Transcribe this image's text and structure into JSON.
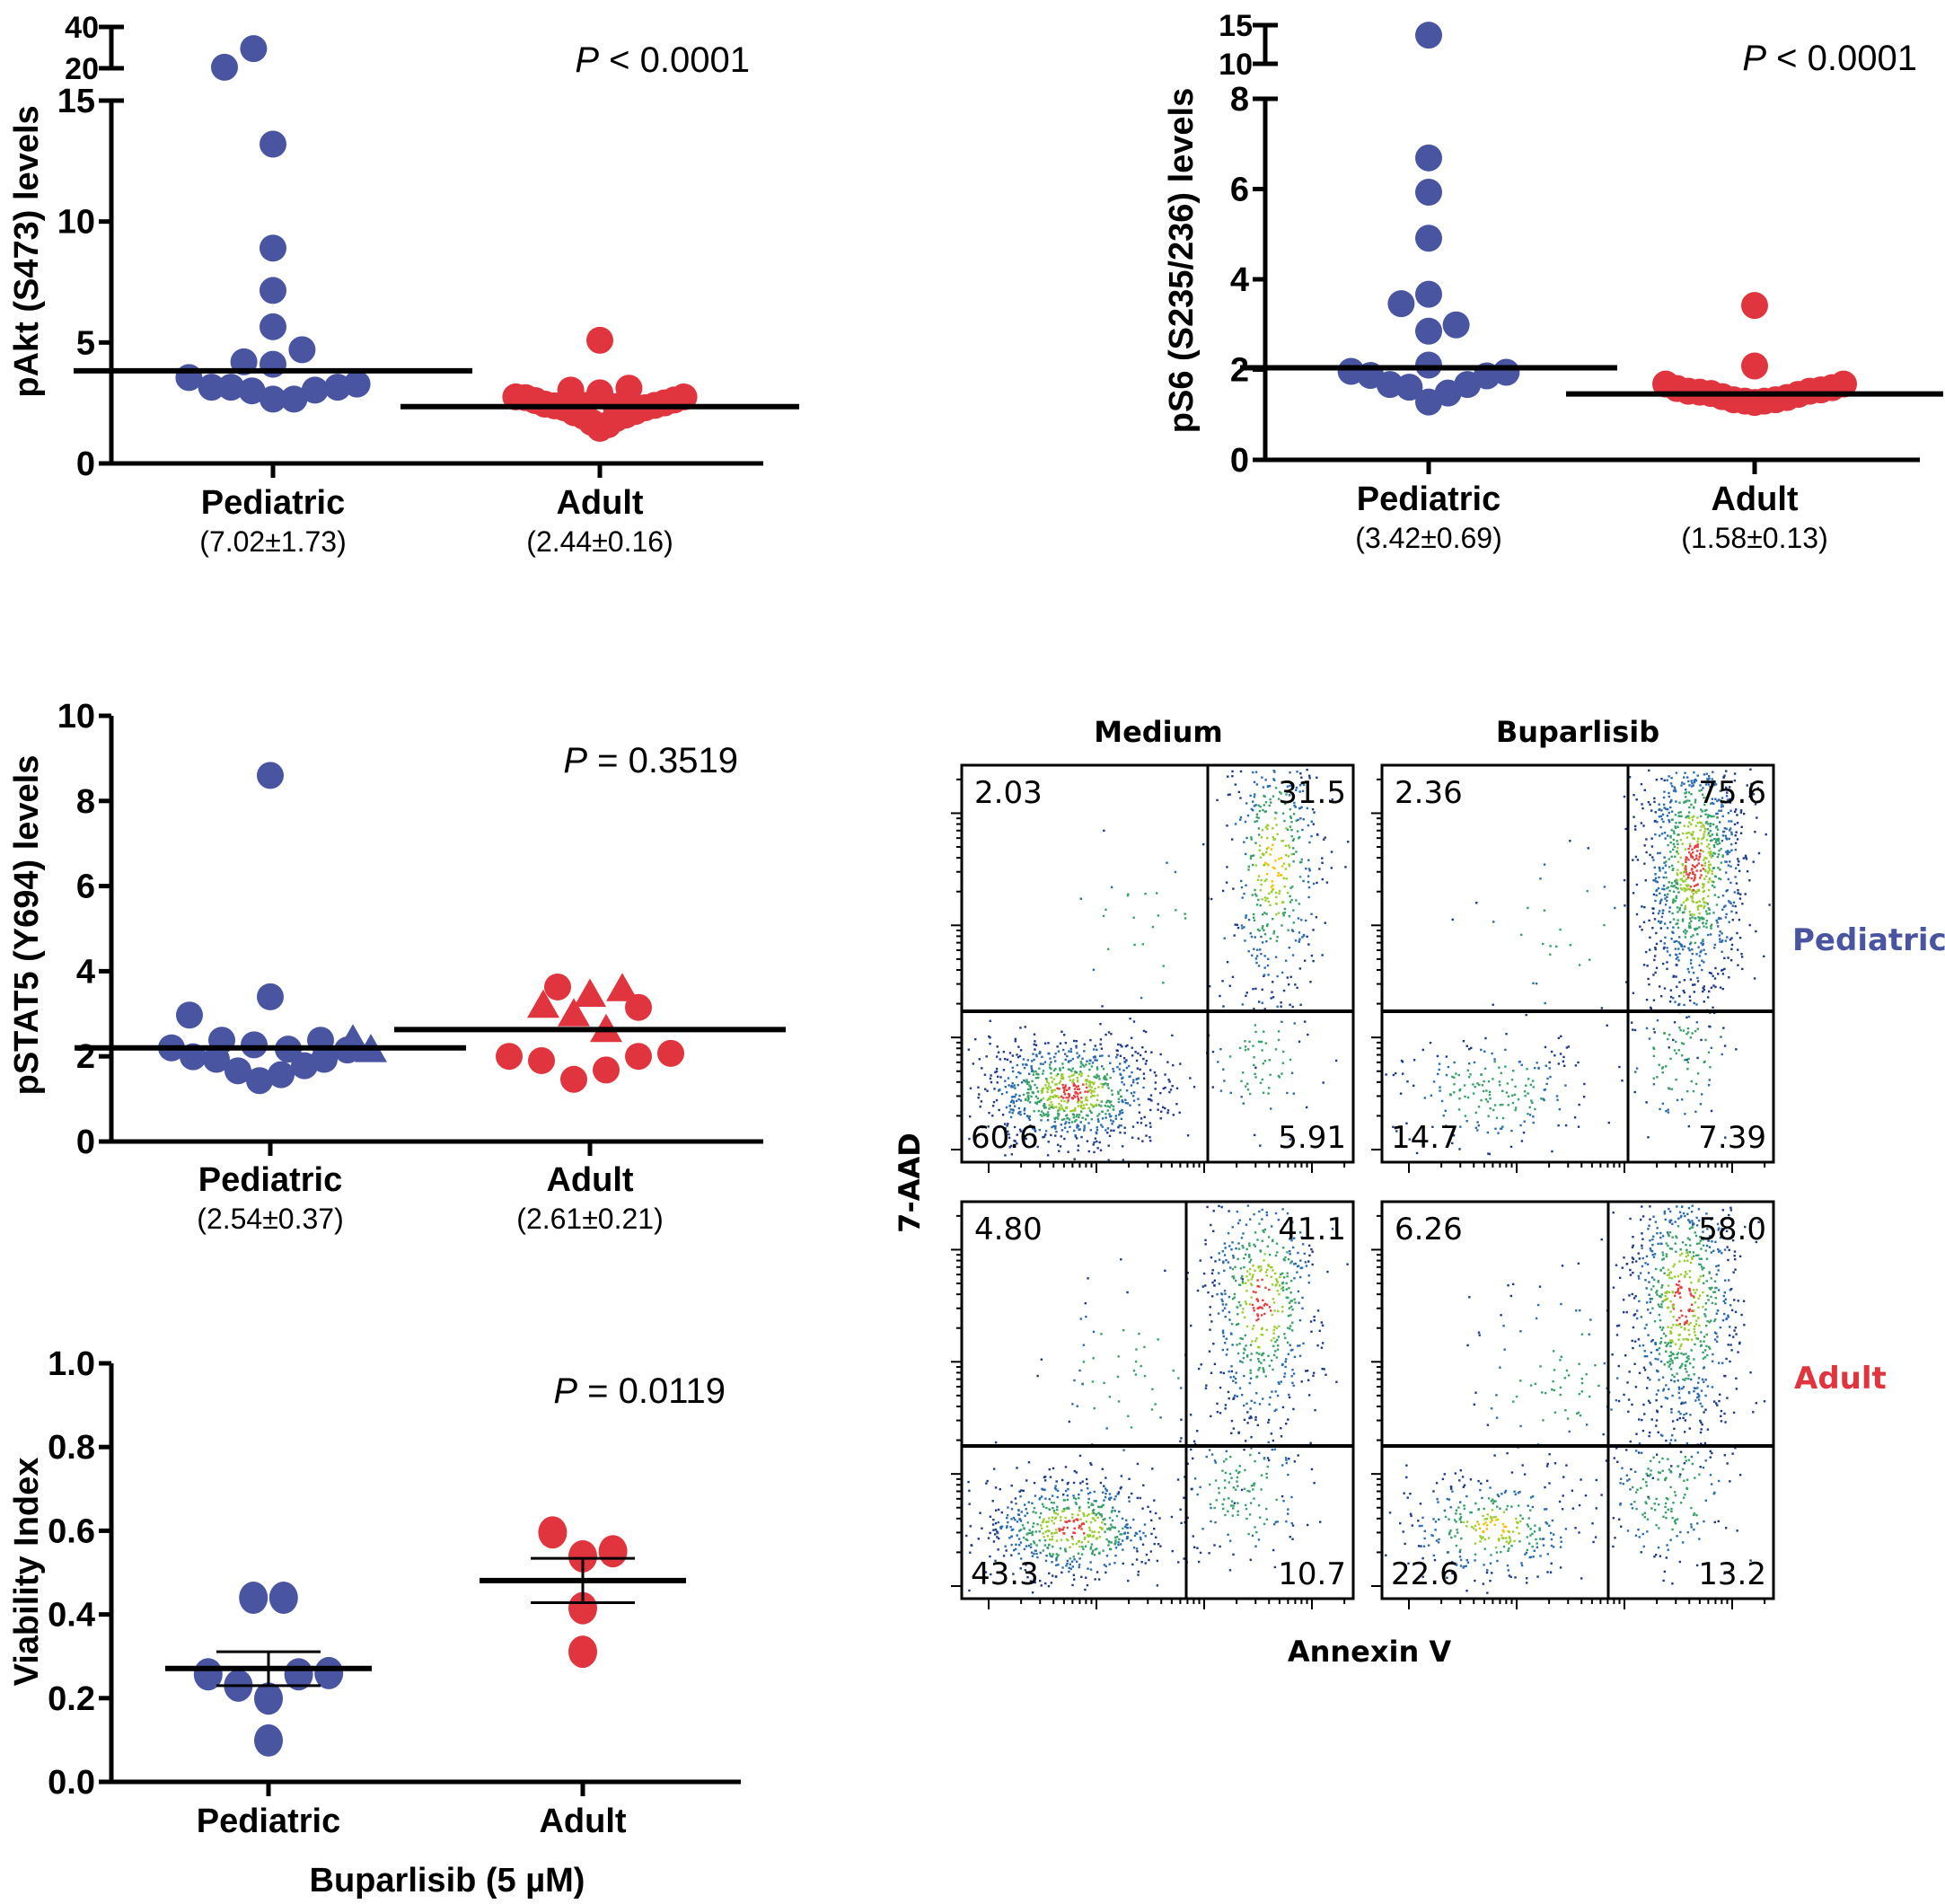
{
  "figure": {
    "colors": {
      "pediatric": "#4a55a2",
      "adult": "#e0353f",
      "pediatric_label": "#4a55a2",
      "adult_label": "#e0353f"
    }
  },
  "chart_data": [
    {
      "id": "pakt",
      "type": "scatter",
      "title": "",
      "ylabel": "pAkt (S473) levels",
      "categories": [
        "Pediatric",
        "Adult"
      ],
      "category_summaries": [
        "(7.02±1.73)",
        "(2.44±0.16)"
      ],
      "annotation": {
        "italic": "P",
        "text": " < 0.0001"
      },
      "ylim": [
        0,
        40
      ],
      "y_break": {
        "lower": [
          0,
          15
        ],
        "upper": [
          20,
          40
        ]
      },
      "yticks": [
        0,
        5,
        10,
        15
      ],
      "yticks_upper": [
        20,
        40
      ],
      "grid": false,
      "series": [
        {
          "name": "Pediatric",
          "marker": "circle",
          "points": [
            [
              -0.3,
              20.5
            ],
            [
              -0.12,
              29.5
            ],
            [
              0.0,
              13.2
            ],
            [
              0.0,
              8.9
            ],
            [
              0.0,
              7.15
            ],
            [
              0.0,
              5.65
            ],
            [
              0.18,
              4.7
            ],
            [
              -0.18,
              4.2
            ],
            [
              0.0,
              4.1
            ],
            [
              -0.52,
              3.55
            ],
            [
              -0.38,
              3.15
            ],
            [
              -0.26,
              3.15
            ],
            [
              -0.13,
              3.0
            ],
            [
              0.0,
              2.66
            ],
            [
              0.13,
              2.66
            ],
            [
              0.26,
              3.03
            ],
            [
              0.4,
              3.15
            ],
            [
              0.52,
              3.28
            ]
          ],
          "mean_line": 3.83
        },
        {
          "name": "Adult",
          "marker": "circle",
          "points": [
            [
              0.0,
              5.09
            ],
            [
              -0.18,
              3.03
            ],
            [
              0.0,
              2.92
            ],
            [
              0.18,
              3.11
            ],
            [
              -0.52,
              2.75
            ],
            [
              -0.46,
              2.72
            ],
            [
              -0.4,
              2.6
            ],
            [
              -0.34,
              2.45
            ],
            [
              -0.28,
              2.38
            ],
            [
              -0.22,
              2.3
            ],
            [
              -0.16,
              2.1
            ],
            [
              -0.1,
              1.95
            ],
            [
              -0.05,
              1.7
            ],
            [
              0.0,
              1.45
            ],
            [
              0.05,
              1.6
            ],
            [
              0.1,
              1.85
            ],
            [
              0.16,
              2.0
            ],
            [
              0.22,
              2.15
            ],
            [
              0.28,
              2.3
            ],
            [
              0.34,
              2.4
            ],
            [
              0.4,
              2.5
            ],
            [
              0.46,
              2.62
            ],
            [
              0.52,
              2.75
            ],
            [
              -0.1,
              2.4
            ],
            [
              0.1,
              2.35
            ]
          ],
          "mean_line": 2.35
        }
      ]
    },
    {
      "id": "ps6",
      "type": "scatter",
      "title": "",
      "ylabel": "pS6 (S235/236) levels",
      "categories": [
        "Pediatric",
        "Adult"
      ],
      "category_summaries": [
        "(3.42±0.69)",
        "(1.58±0.13)"
      ],
      "annotation": {
        "italic": "P",
        "text": " < 0.0001"
      },
      "ylim": [
        0,
        15
      ],
      "y_break": {
        "lower": [
          0,
          8
        ],
        "upper": [
          10,
          15
        ]
      },
      "yticks": [
        0,
        2,
        4,
        6,
        8
      ],
      "yticks_upper": [
        10,
        15
      ],
      "grid": false,
      "series": [
        {
          "name": "Pediatric",
          "marker": "circle",
          "points": [
            [
              0.0,
              13.7
            ],
            [
              0.0,
              6.69
            ],
            [
              0.0,
              5.93
            ],
            [
              0.0,
              4.91
            ],
            [
              0.0,
              3.67
            ],
            [
              -0.17,
              3.46
            ],
            [
              0.0,
              2.85
            ],
            [
              0.17,
              2.99
            ],
            [
              0.0,
              2.1
            ],
            [
              -0.48,
              1.96
            ],
            [
              -0.36,
              1.87
            ],
            [
              -0.24,
              1.67
            ],
            [
              -0.12,
              1.61
            ],
            [
              0.0,
              1.28
            ],
            [
              0.12,
              1.48
            ],
            [
              0.24,
              1.67
            ],
            [
              0.36,
              1.86
            ],
            [
              0.48,
              1.94
            ]
          ],
          "mean_line": 2.04
        },
        {
          "name": "Adult",
          "marker": "circle",
          "points": [
            [
              0.0,
              3.42
            ],
            [
              0.0,
              2.08
            ],
            [
              -0.55,
              1.68
            ],
            [
              -0.48,
              1.58
            ],
            [
              -0.41,
              1.52
            ],
            [
              -0.34,
              1.5
            ],
            [
              -0.27,
              1.47
            ],
            [
              -0.2,
              1.4
            ],
            [
              -0.13,
              1.33
            ],
            [
              -0.06,
              1.3
            ],
            [
              0.0,
              1.27
            ],
            [
              0.06,
              1.3
            ],
            [
              0.13,
              1.33
            ],
            [
              0.2,
              1.38
            ],
            [
              0.27,
              1.45
            ],
            [
              0.34,
              1.52
            ],
            [
              0.41,
              1.55
            ],
            [
              0.48,
              1.6
            ],
            [
              0.55,
              1.68
            ]
          ],
          "mean_line": 1.46
        }
      ]
    },
    {
      "id": "pstat5",
      "type": "scatter",
      "title": "",
      "ylabel": "pSTAT5 (Y694) levels",
      "categories": [
        "Pediatric",
        "Adult"
      ],
      "category_summaries": [
        "(2.54±0.37)",
        "(2.61±0.21)"
      ],
      "annotation": {
        "italic": "P",
        "text": " = 0.3519"
      },
      "ylim": [
        0,
        10
      ],
      "yticks": [
        0,
        2,
        4,
        6,
        8,
        10
      ],
      "grid": false,
      "series": [
        {
          "name": "Pediatric",
          "marker": "mixed",
          "points": [
            [
              0.0,
              8.6,
              "circle"
            ],
            [
              0.0,
              3.4,
              "circle"
            ],
            [
              -0.45,
              2.97,
              "circle"
            ],
            [
              -0.55,
              2.2,
              "circle"
            ],
            [
              -0.43,
              1.99,
              "circle"
            ],
            [
              -0.3,
              1.93,
              "circle"
            ],
            [
              -0.27,
              2.38,
              "circle"
            ],
            [
              -0.18,
              1.66,
              "circle"
            ],
            [
              -0.09,
              2.27,
              "circle"
            ],
            [
              -0.06,
              1.43,
              "circle"
            ],
            [
              0.06,
              1.57,
              "circle"
            ],
            [
              0.1,
              2.17,
              "circle"
            ],
            [
              0.19,
              1.78,
              "circle"
            ],
            [
              0.28,
              2.38,
              "circle"
            ],
            [
              0.3,
              1.93,
              "circle"
            ],
            [
              0.43,
              2.15,
              "circle"
            ],
            [
              0.46,
              2.38,
              "triangle"
            ],
            [
              0.56,
              2.15,
              "triangle"
            ]
          ],
          "mean_line": 2.2
        },
        {
          "name": "Adult",
          "marker": "mixed",
          "points": [
            [
              -0.18,
              3.63,
              "circle"
            ],
            [
              0.27,
              3.15,
              "circle"
            ],
            [
              -0.45,
              2.0,
              "circle"
            ],
            [
              -0.27,
              1.9,
              "circle"
            ],
            [
              -0.09,
              1.46,
              "circle"
            ],
            [
              0.09,
              1.68,
              "circle"
            ],
            [
              0.27,
              2.0,
              "circle"
            ],
            [
              0.45,
              2.07,
              "circle"
            ],
            [
              -0.26,
              3.19,
              "triangle"
            ],
            [
              0.0,
              3.45,
              "triangle"
            ],
            [
              0.18,
              3.58,
              "triangle"
            ],
            [
              -0.09,
              2.99,
              "triangle"
            ],
            [
              0.09,
              2.62,
              "triangle"
            ]
          ],
          "mean_line": 2.63
        }
      ]
    },
    {
      "id": "viability",
      "type": "scatter",
      "title": "",
      "ylabel": "Viability Index",
      "xlabel": "Buparlisib (5 µM)",
      "categories": [
        "Pediatric",
        "Adult"
      ],
      "annotation": {
        "italic": "P",
        "text": " = 0.0119"
      },
      "ylim": [
        0,
        1.0
      ],
      "yticks": [
        "0.0",
        "0.2",
        "0.4",
        "0.6",
        "0.8",
        "1.0"
      ],
      "grid": false,
      "series": [
        {
          "name": "Pediatric",
          "marker": "circle",
          "points": [
            [
              -0.12,
              0.44
            ],
            [
              0.12,
              0.44
            ],
            [
              -0.48,
              0.257
            ],
            [
              -0.24,
              0.23
            ],
            [
              0.0,
              0.199
            ],
            [
              0.24,
              0.257
            ],
            [
              0.48,
              0.26
            ],
            [
              0.0,
              0.099
            ]
          ],
          "mean_line": 0.271,
          "sem": [
            0.23,
            0.311
          ]
        },
        {
          "name": "Adult",
          "marker": "circle",
          "points": [
            [
              -0.24,
              0.596
            ],
            [
              0.0,
              0.539
            ],
            [
              0.24,
              0.551
            ],
            [
              0.0,
              0.415
            ],
            [
              0.0,
              0.311
            ]
          ],
          "mean_line": 0.481,
          "sem": [
            0.428,
            0.534
          ]
        }
      ]
    },
    {
      "id": "flow",
      "type": "scatter",
      "title": "",
      "xlabel": "Annexin V",
      "ylabel": "7-AAD",
      "columns": [
        "Medium",
        "Buparlisib"
      ],
      "rows": [
        {
          "group": "Pediatric",
          "color_key": "pediatric_label",
          "quadrants": [
            {
              "condition": "Medium",
              "UL": "2.03",
              "UR": "31.5",
              "LL": "60.6",
              "LR": "5.91"
            },
            {
              "condition": "Buparlisib",
              "UL": "2.36",
              "UR": "75.6",
              "LL": "14.7",
              "LR": "7.39"
            }
          ]
        },
        {
          "group": "Adult",
          "color_key": "adult_label",
          "quadrants": [
            {
              "condition": "Medium",
              "UL": "4.80",
              "UR": "41.1",
              "LL": "43.3",
              "LR": "10.7"
            },
            {
              "condition": "Buparlisib",
              "UL": "6.26",
              "UR": "58.0",
              "LL": "22.6",
              "LR": "13.2"
            }
          ]
        }
      ]
    }
  ]
}
